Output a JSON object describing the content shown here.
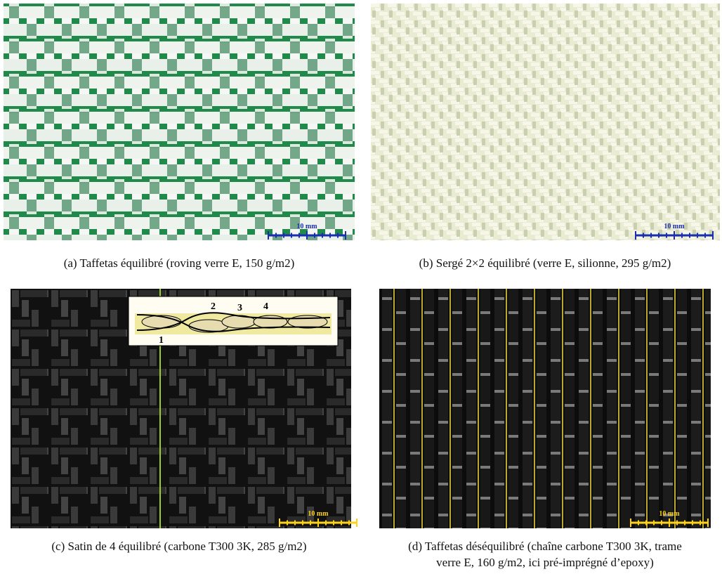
{
  "panels": [
    {
      "caption": [
        "(a) Taffetas équilibré (roving verre E, 150 g/m2)"
      ],
      "scale_label": "10 mm"
    },
    {
      "caption": [
        "(b) Sergé 2×2 équilibré (verre E, silionne, 295 g/m2)"
      ],
      "scale_label": "10 mm"
    },
    {
      "caption": [
        "(c) Satin de 4 équilibré (carbone T300 3K, 285 g/m2)"
      ],
      "scale_label": "10 mm"
    },
    {
      "caption": [
        "(d) Taffetas déséquilibré (chaîne carbone T300 3K, trame",
        "verre E, 160 g/m2, ici pré-imprégné d’epoxy)"
      ],
      "scale_label": "10 mm"
    }
  ],
  "inset_labels": [
    "1",
    "2",
    "3",
    "4"
  ]
}
